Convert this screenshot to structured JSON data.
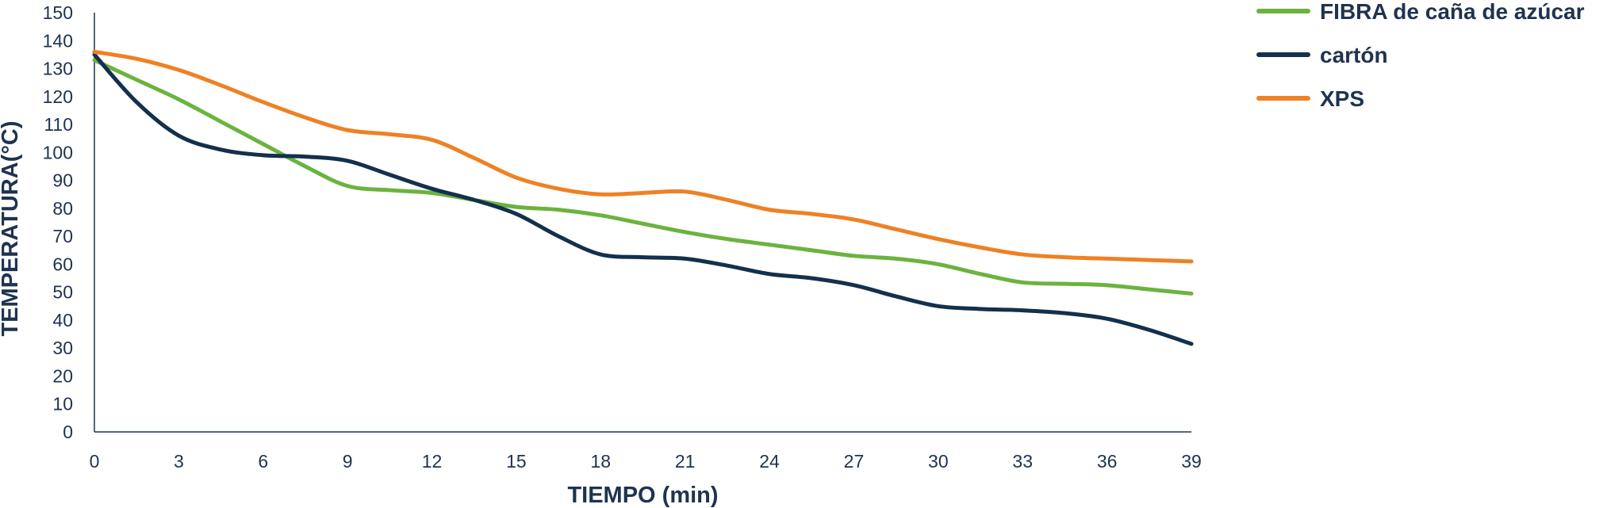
{
  "chart_data": {
    "type": "line",
    "title": "",
    "xlabel": "TIEMPO (min)",
    "ylabel": "TEMPERATURA(°C)",
    "xlim": [
      0,
      39
    ],
    "ylim": [
      0,
      150
    ],
    "x_ticks": [
      "0",
      "3",
      "6",
      "9",
      "12",
      "15",
      "18",
      "21",
      "24",
      "27",
      "30",
      "33",
      "36",
      "39"
    ],
    "y_ticks": [
      "0",
      "10",
      "20",
      "30",
      "40",
      "50",
      "60",
      "70",
      "80",
      "90",
      "100",
      "110",
      "120",
      "130",
      "140",
      "150"
    ],
    "grid": false,
    "legend_position": "top-right",
    "x": [
      0,
      1.5,
      3,
      4.5,
      6,
      7.5,
      9,
      10.5,
      12,
      13.5,
      15,
      16.5,
      18,
      19.5,
      21,
      22.5,
      24,
      25.5,
      27,
      28.5,
      30,
      31.5,
      33,
      34.5,
      36,
      37.5,
      39
    ],
    "series": [
      {
        "name": "FIBRA de caña de azúcar",
        "color": "#6bb33e",
        "values": [
          133,
          126,
          119,
          111,
          103,
          95,
          88,
          86.5,
          85.5,
          83,
          80.5,
          79.5,
          77.5,
          74.5,
          71.5,
          69,
          67,
          65,
          63,
          62,
          60,
          56.5,
          53.5,
          53,
          52.5,
          51,
          49.5
        ]
      },
      {
        "name": "cartón",
        "color": "#13304d",
        "values": [
          135,
          118,
          106,
          101,
          99,
          98.5,
          97,
          92,
          87,
          83,
          78,
          70,
          63.5,
          62.5,
          62,
          59.5,
          56.5,
          55,
          52.5,
          48.5,
          45,
          44,
          43.5,
          42.5,
          40.5,
          36.5,
          31.5
        ]
      },
      {
        "name": "XPS",
        "color": "#ee8124",
        "values": [
          136,
          133.5,
          129.5,
          124,
          118,
          112.5,
          108,
          106.5,
          104.5,
          98,
          91,
          87,
          85,
          85.5,
          86,
          83,
          79.5,
          78,
          76,
          72.5,
          69,
          66,
          63.5,
          62.5,
          62,
          61.5,
          61
        ]
      }
    ]
  }
}
